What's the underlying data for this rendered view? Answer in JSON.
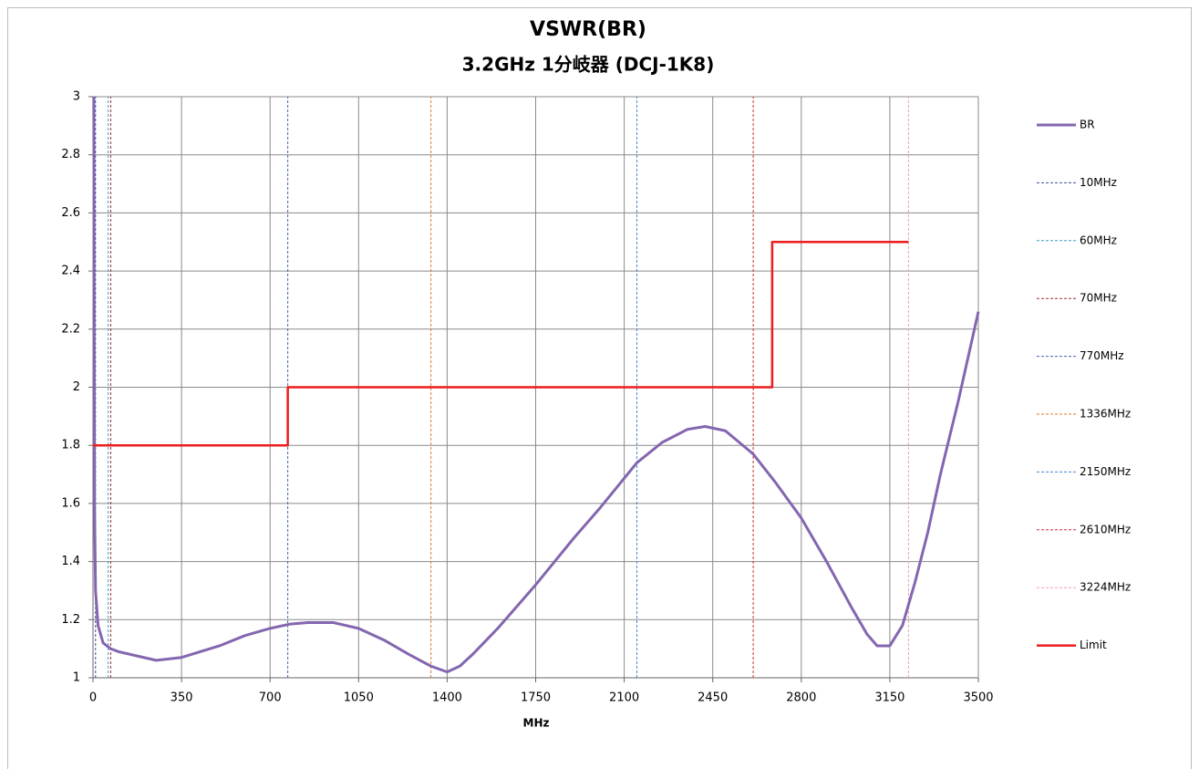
{
  "chart_data": {
    "type": "line",
    "title": "VSWR(BR)",
    "subtitle": "3.2GHz 1分岐器 (DCJ-1K8)",
    "x_label": "MHz",
    "xlim": [
      0,
      3500
    ],
    "xticks": [
      0,
      350,
      700,
      1050,
      1400,
      1750,
      2100,
      2450,
      2800,
      3150,
      3500
    ],
    "ylim": [
      1,
      3
    ],
    "yticks": [
      1,
      1.2,
      1.4,
      1.6,
      1.8,
      2,
      2.2,
      2.4,
      2.6,
      2.8,
      3
    ],
    "grid": true,
    "legend": "right",
    "series": [
      {
        "name": "BR",
        "color": "#8466b0",
        "dashed": false,
        "width": 3,
        "x": [
          3,
          6,
          10,
          20,
          40,
          70,
          100,
          175,
          250,
          350,
          500,
          600,
          700,
          780,
          850,
          950,
          1050,
          1150,
          1250,
          1336,
          1400,
          1450,
          1500,
          1600,
          1750,
          1900,
          2000,
          2150,
          2250,
          2350,
          2420,
          2500,
          2610,
          2700,
          2800,
          2900,
          3000,
          3060,
          3100,
          3150,
          3200,
          3250,
          3300,
          3350,
          3420,
          3500
        ],
        "values": [
          3,
          1.6,
          1.3,
          1.18,
          1.12,
          1.1,
          1.09,
          1.075,
          1.06,
          1.07,
          1.11,
          1.145,
          1.17,
          1.185,
          1.19,
          1.19,
          1.17,
          1.13,
          1.08,
          1.04,
          1.02,
          1.04,
          1.08,
          1.17,
          1.32,
          1.48,
          1.58,
          1.74,
          1.81,
          1.855,
          1.865,
          1.85,
          1.77,
          1.67,
          1.55,
          1.4,
          1.24,
          1.15,
          1.11,
          1.11,
          1.18,
          1.33,
          1.5,
          1.7,
          1.95,
          2.26
        ]
      },
      {
        "name": "10MHz",
        "color": "#3e4f94",
        "dashed": true,
        "width": 1,
        "x": [
          10,
          10
        ],
        "values": [
          1,
          3
        ]
      },
      {
        "name": "60MHz",
        "color": "#3e9cc4",
        "dashed": true,
        "width": 1,
        "x": [
          60,
          60
        ],
        "values": [
          1,
          3
        ]
      },
      {
        "name": "70MHz",
        "color": "#9c2e2e",
        "dashed": true,
        "width": 1,
        "x": [
          70,
          70
        ],
        "values": [
          1,
          3
        ]
      },
      {
        "name": "770MHz",
        "color": "#3f68a6",
        "dashed": true,
        "width": 1,
        "x": [
          770,
          770
        ],
        "values": [
          1,
          3
        ]
      },
      {
        "name": "1336MHz",
        "color": "#d9792c",
        "dashed": true,
        "width": 1,
        "x": [
          1336,
          1336
        ],
        "values": [
          1,
          3
        ]
      },
      {
        "name": "2150MHz",
        "color": "#3a8ad6",
        "dashed": true,
        "width": 1,
        "x": [
          2150,
          2150
        ],
        "values": [
          1,
          3
        ]
      },
      {
        "name": "2610MHz",
        "color": "#c8302e",
        "dashed": true,
        "width": 1,
        "x": [
          2610,
          2610
        ],
        "values": [
          1,
          3
        ]
      },
      {
        "name": "3224MHz",
        "color": "#eaa1ae",
        "dashed": true,
        "width": 1,
        "x": [
          3224,
          3224
        ],
        "values": [
          1,
          3
        ]
      },
      {
        "name": "Limit",
        "color": "#ee1c1c",
        "dashed": false,
        "width": 2.5,
        "x": [
          0,
          770,
          770,
          2685,
          2685,
          3224
        ],
        "values": [
          1.8,
          1.8,
          2,
          2,
          2.5,
          2.5
        ]
      }
    ]
  }
}
